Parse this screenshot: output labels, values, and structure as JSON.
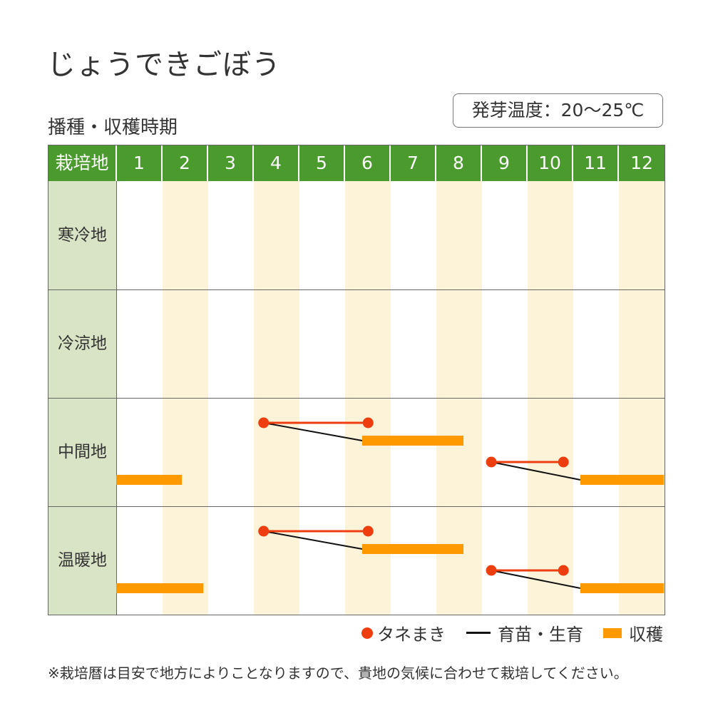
{
  "title": "じょうできごぼう",
  "germination_temp": "発芽温度：20〜25℃",
  "chart_data": {
    "type": "table",
    "title": "播種・収穫時期",
    "corner_label": "栽培地",
    "months": [
      "1",
      "2",
      "3",
      "4",
      "5",
      "6",
      "7",
      "8",
      "9",
      "10",
      "11",
      "12"
    ],
    "regions": [
      {
        "name": "寒冷地",
        "sowing": [],
        "harvest": []
      },
      {
        "name": "冷涼地",
        "sowing": [],
        "harvest": []
      },
      {
        "name": "中間地",
        "sowing": [
          {
            "start": 4.23,
            "end": 6.52,
            "lane": 0
          },
          {
            "start": 9.22,
            "end": 10.8,
            "lane": 1
          }
        ],
        "harvest": [
          {
            "start": 6.39,
            "end": 8.61,
            "lane": 0
          },
          {
            "start": 1.0,
            "end": 2.44,
            "lane": 1
          },
          {
            "start": 11.17,
            "end": 13.0,
            "lane": 1
          }
        ]
      },
      {
        "name": "温暖地",
        "sowing": [
          {
            "start": 4.23,
            "end": 6.52,
            "lane": 0
          },
          {
            "start": 9.22,
            "end": 10.8,
            "lane": 1
          }
        ],
        "harvest": [
          {
            "start": 6.39,
            "end": 8.61,
            "lane": 0
          },
          {
            "start": 1.0,
            "end": 2.91,
            "lane": 1
          },
          {
            "start": 11.17,
            "end": 13.0,
            "lane": 1
          }
        ]
      }
    ],
    "legend": {
      "sowing": "タネまき",
      "growing": "育苗・生育",
      "harvest": "収穫"
    },
    "colors": {
      "sowing": "#ee3d0f",
      "growing": "#111111",
      "harvest": "#ff9900",
      "header": "#4b9a2e",
      "band": "#fdf3d8",
      "label_bg": "#d9e3c5"
    }
  },
  "note": "※栽培暦は目安で地方によりことなりますので、貴地の気候に合わせて栽培してください。"
}
